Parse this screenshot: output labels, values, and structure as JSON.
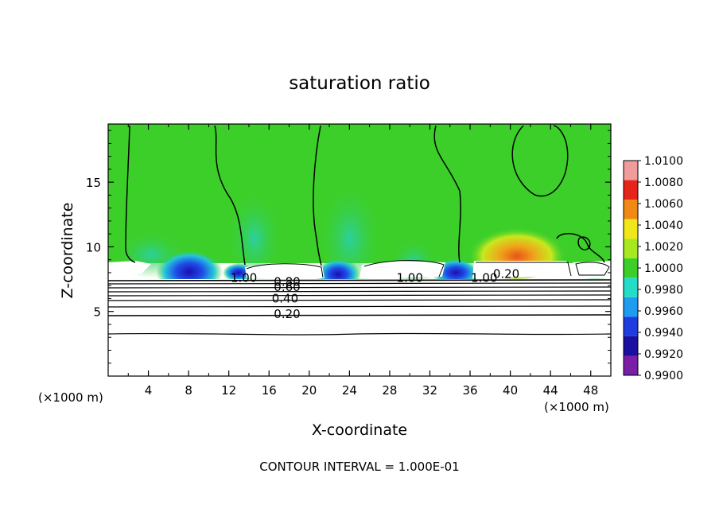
{
  "chart_data": {
    "type": "heatmap",
    "title": "saturation ratio",
    "xlabel": "X-coordinate",
    "ylabel": "Z-coordinate",
    "x_unit_left": "(×1000 m)",
    "x_unit_right": "(×1000 m)",
    "xlim": [
      0,
      50
    ],
    "ylim": [
      0,
      19.5
    ],
    "x_ticks": [
      4,
      8,
      12,
      16,
      20,
      24,
      28,
      32,
      36,
      40,
      44,
      48
    ],
    "y_ticks": [
      5,
      10,
      15
    ],
    "colorbar": {
      "levels": [
        0.99,
        0.992,
        0.994,
        0.996,
        0.998,
        1.0,
        1.002,
        1.004,
        1.006,
        1.008,
        1.01
      ],
      "labels": [
        "0.9900",
        "0.9920",
        "0.9940",
        "0.9960",
        "0.9980",
        "1.0000",
        "1.0020",
        "1.0040",
        "1.0060",
        "1.0080",
        "1.0100"
      ],
      "colors": [
        "#7a1ea8",
        "#1a0f9e",
        "#1f3ce0",
        "#1f9cf0",
        "#25dcc8",
        "#3ccf2a",
        "#a8e81e",
        "#f0e61a",
        "#f08a14",
        "#e6241a",
        "#f09c9c"
      ]
    },
    "contour_labels": [
      {
        "x": 13.5,
        "z": 7.6,
        "text": "1.00"
      },
      {
        "x": 17.8,
        "z": 7.3,
        "text": "0.80"
      },
      {
        "x": 17.8,
        "z": 6.9,
        "text": "0.60"
      },
      {
        "x": 17.6,
        "z": 6.0,
        "text": "0.40"
      },
      {
        "x": 17.8,
        "z": 4.8,
        "text": "0.20"
      },
      {
        "x": 30.0,
        "z": 7.6,
        "text": "1.00"
      },
      {
        "x": 37.4,
        "z": 7.6,
        "text": "1.00"
      },
      {
        "x": 39.6,
        "z": 7.9,
        "text": "0.20"
      }
    ],
    "footnote": "CONTOUR INTERVAL = 1.000E-01",
    "legend_position": "right",
    "grid": false
  }
}
